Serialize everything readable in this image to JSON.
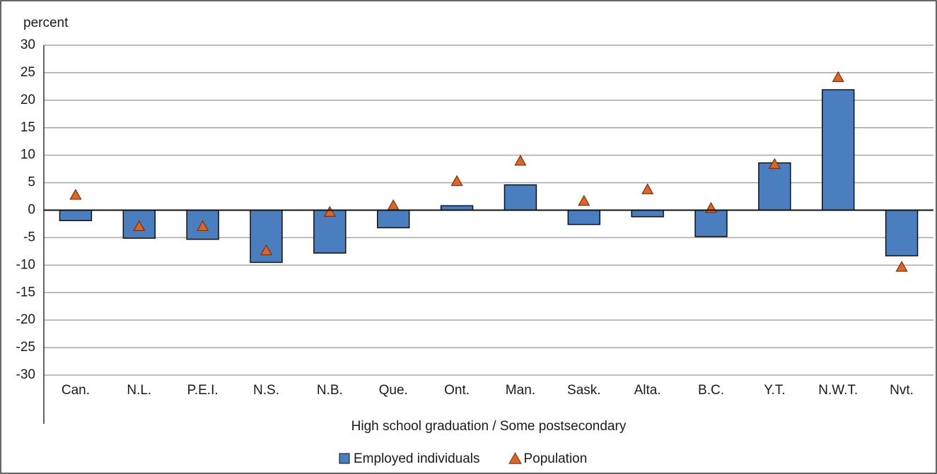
{
  "chart_data": {
    "type": "bar",
    "ylabel": "percent",
    "xlabel": "High school graduation / Some postsecondary",
    "categories": [
      "Can.",
      "N.L.",
      "P.E.I.",
      "N.S.",
      "N.B.",
      "Que.",
      "Ont.",
      "Man.",
      "Sask.",
      "Alta.",
      "B.C.",
      "Y.T.",
      "N.W.T.",
      "Nvt."
    ],
    "series": [
      {
        "name": "Employed individuals",
        "type": "bar",
        "color": "#4a7ebf",
        "values": [
          -1.9,
          -5.1,
          -5.3,
          -9.5,
          -7.8,
          -3.2,
          0.8,
          4.6,
          -2.6,
          -1.2,
          -4.8,
          8.6,
          21.9,
          -8.3
        ]
      },
      {
        "name": "Population",
        "type": "triangle",
        "color": "#d9662b",
        "values": [
          2.7,
          -3.0,
          -3.0,
          -7.4,
          -0.4,
          0.8,
          5.2,
          8.9,
          1.6,
          3.7,
          0.3,
          8.3,
          24.1,
          -10.4
        ]
      }
    ],
    "ylim": [
      -30,
      30
    ],
    "yticks": [
      -30,
      -25,
      -20,
      -15,
      -10,
      -5,
      0,
      5,
      10,
      15,
      20,
      25,
      30
    ],
    "grid": true
  }
}
